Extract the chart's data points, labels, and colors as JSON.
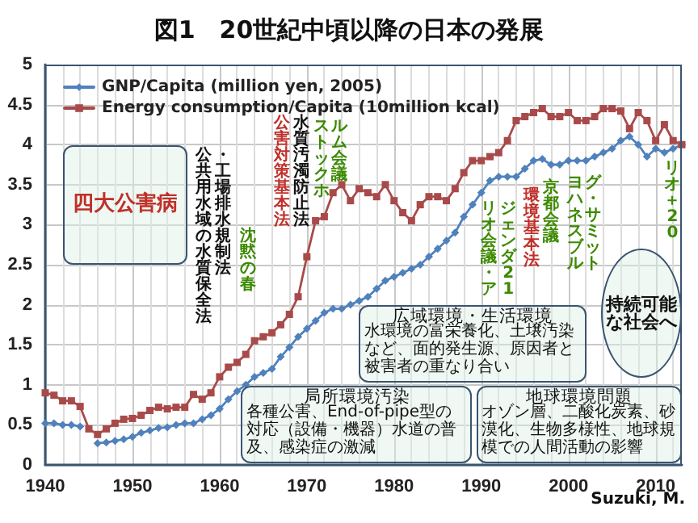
{
  "chart_data": {
    "type": "line",
    "title": "図1　20世紀中頃以降の日本の発展",
    "x": [
      1940,
      1941,
      1942,
      1943,
      1944,
      1945,
      1946,
      1947,
      1948,
      1949,
      1950,
      1951,
      1952,
      1953,
      1954,
      1955,
      1956,
      1957,
      1958,
      1959,
      1960,
      1961,
      1962,
      1963,
      1964,
      1965,
      1966,
      1967,
      1968,
      1969,
      1970,
      1971,
      1972,
      1973,
      1974,
      1975,
      1976,
      1977,
      1978,
      1979,
      1980,
      1981,
      1982,
      1983,
      1984,
      1985,
      1986,
      1987,
      1988,
      1989,
      1990,
      1991,
      1992,
      1993,
      1994,
      1995,
      1996,
      1997,
      1998,
      1999,
      2000,
      2001,
      2002,
      2003,
      2004,
      2005,
      2006,
      2007,
      2008,
      2009,
      2010,
      2011,
      2012,
      2013
    ],
    "series": [
      {
        "name": "GNP/Capita (million yen, 2005)",
        "color": "#4f81bd",
        "marker": "diamond",
        "values": [
          0.52,
          0.52,
          0.5,
          0.5,
          0.48,
          null,
          0.27,
          0.28,
          0.3,
          0.32,
          0.35,
          0.4,
          0.43,
          0.46,
          0.47,
          0.5,
          0.52,
          0.52,
          0.57,
          0.62,
          0.7,
          0.82,
          0.92,
          1.0,
          1.1,
          1.15,
          1.2,
          1.35,
          1.47,
          1.6,
          1.7,
          1.8,
          1.9,
          1.95,
          1.95,
          2.0,
          2.05,
          2.1,
          2.2,
          2.3,
          2.35,
          2.4,
          2.45,
          2.5,
          2.6,
          2.7,
          2.8,
          2.9,
          3.1,
          3.25,
          3.4,
          3.55,
          3.6,
          3.6,
          3.6,
          3.7,
          3.8,
          3.82,
          3.75,
          3.75,
          3.8,
          3.8,
          3.8,
          3.85,
          3.9,
          3.95,
          4.05,
          4.1,
          4.0,
          3.85,
          3.95,
          3.9,
          3.95,
          4.0
        ]
      },
      {
        "name": "Energy consumption/Capita (10million kcal)",
        "color": "#a94a4a",
        "marker": "square",
        "values": [
          0.9,
          0.87,
          0.8,
          0.8,
          0.73,
          0.45,
          0.38,
          0.45,
          0.52,
          0.57,
          0.58,
          0.62,
          0.68,
          0.72,
          0.7,
          0.72,
          0.72,
          0.88,
          0.82,
          0.9,
          1.1,
          1.22,
          1.28,
          1.38,
          1.55,
          1.6,
          1.65,
          1.75,
          1.88,
          2.1,
          2.6,
          3.05,
          3.1,
          3.4,
          3.5,
          3.3,
          3.45,
          3.4,
          3.35,
          3.5,
          3.3,
          3.15,
          3.05,
          3.25,
          3.35,
          3.35,
          3.3,
          3.45,
          3.65,
          3.8,
          3.8,
          3.85,
          3.9,
          4.05,
          4.3,
          4.35,
          4.4,
          4.45,
          4.35,
          4.35,
          4.4,
          4.3,
          4.3,
          4.35,
          4.45,
          4.45,
          4.42,
          4.2,
          4.4,
          4.3,
          4.05,
          4.25,
          4.05,
          4.0
        ]
      }
    ],
    "xlim": [
      1940,
      2013
    ],
    "xticks": [
      1940,
      1950,
      1960,
      1970,
      1980,
      1990,
      2000,
      2010
    ],
    "ylim": [
      0,
      5
    ],
    "yticks": [
      0,
      0.5,
      1,
      1.5,
      2,
      2.5,
      3,
      3.5,
      4,
      4.5,
      5
    ],
    "grid": true,
    "legend": "top left",
    "line_style": "solid",
    "annotations": [
      "四大公害病",
      "公共用水域の水質保全法・工場排水規制法",
      "沈黙の春",
      "公害対策基本法",
      "水質汚濁防止法",
      "ストックホルム会議",
      "リオ会議・アジェンダ21",
      "環境基本法",
      "京都会議",
      "ヨハネスブルグ・サミット",
      "リオ＋20",
      "局所環境汚染",
      "各種公害、End-of-pipe型の対応（設備・機器）水道の普及、感染症の激減",
      "広域環境・生活環境",
      "水環境の富栄養化、土壌汚染など、面的発生源、原因者と被害者の重なり合い",
      "地球環境問題",
      "オゾン層、二酸化炭素、砂漠化、生物多様性、地球規模での人間活動の影響",
      "持続可能な社会へ",
      "Suzuki, M."
    ]
  }
}
